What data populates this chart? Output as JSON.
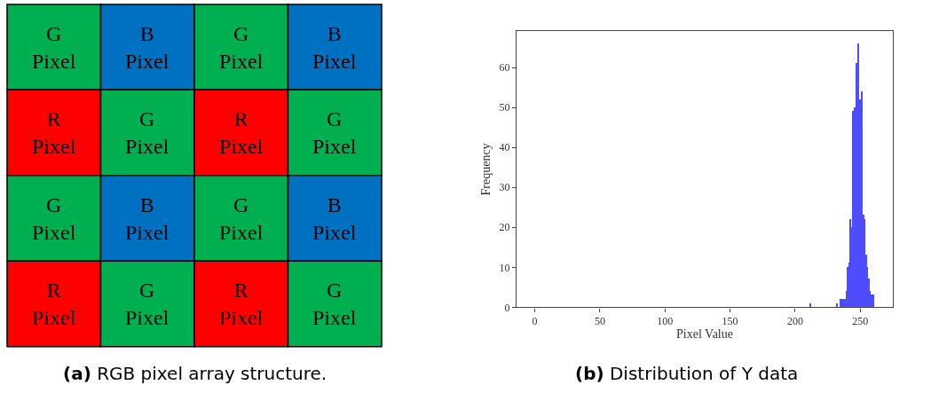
{
  "chart_data": [
    {
      "type": "other",
      "title": "(a) RGB pixel array structure.",
      "cell_labels": [
        [
          "G\nPixel",
          "B\nPixel",
          "G\nPixel",
          "B\nPixel"
        ],
        [
          "R\nPixel",
          "G\nPixel",
          "R\nPixel",
          "G\nPixel"
        ],
        [
          "G\nPixel",
          "B\nPixel",
          "G\nPixel",
          "B\nPixel"
        ],
        [
          "R\nPixel",
          "G\nPixel",
          "R\nPixel",
          "G\nPixel"
        ]
      ],
      "colors": [
        [
          "#00b050",
          "#0070c0",
          "#00b050",
          "#0070c0"
        ],
        [
          "#ff0000",
          "#00b050",
          "#ff0000",
          "#00b050"
        ],
        [
          "#00b050",
          "#0070c0",
          "#00b050",
          "#0070c0"
        ],
        [
          "#ff0000",
          "#00b050",
          "#ff0000",
          "#00b050"
        ]
      ]
    },
    {
      "type": "histogram",
      "title": "(b) Distribution of Y data",
      "xlabel": "Pixel Value",
      "ylabel": "Frequency",
      "color": "#4d4dff",
      "bins": [
        211,
        212,
        232,
        233,
        234,
        239,
        240,
        241,
        242,
        243,
        244,
        245,
        247,
        248,
        249,
        251,
        252,
        253,
        254,
        255,
        256,
        257,
        258,
        261
      ],
      "values": [
        1,
        0,
        1,
        0,
        2,
        4,
        10,
        11,
        22,
        20,
        49,
        50,
        61,
        66,
        52,
        54,
        23,
        22,
        13,
        10,
        7,
        4,
        3
      ],
      "xlim": [
        -14,
        275
      ],
      "ylim": [
        0,
        69
      ],
      "xticks": [
        0,
        50,
        100,
        150,
        200,
        250
      ],
      "yticks": [
        0,
        10,
        20,
        30,
        40,
        50,
        60
      ]
    }
  ]
}
